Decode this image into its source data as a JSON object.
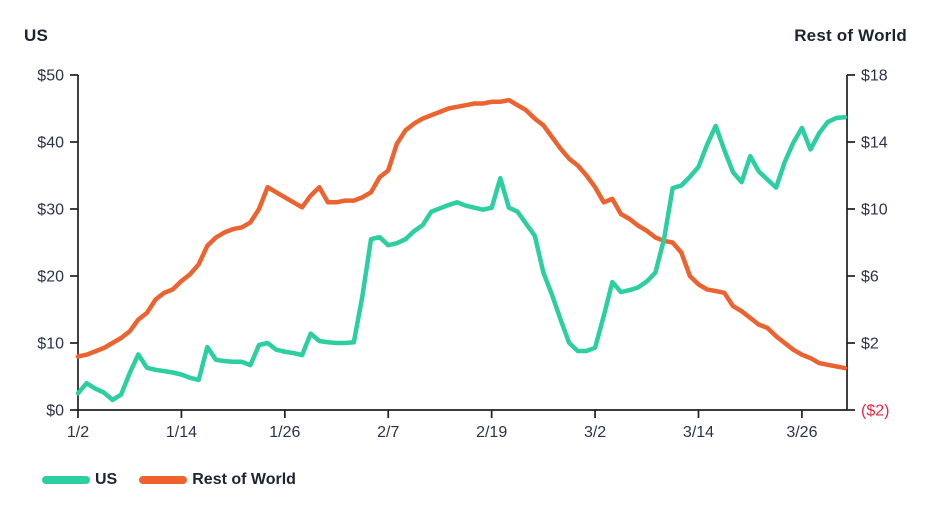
{
  "chart_data": {
    "type": "line",
    "left_axis": {
      "title": "US",
      "min": 0,
      "max": 50,
      "tick_values": [
        0,
        10,
        20,
        30,
        40,
        50
      ],
      "tick_labels": [
        "$0",
        "$10",
        "$20",
        "$30",
        "$40",
        "$50"
      ]
    },
    "right_axis": {
      "title": "Rest of World",
      "min": -2,
      "max": 18,
      "tick_values": [
        -2,
        2,
        6,
        10,
        14,
        18
      ],
      "tick_labels": [
        "($2)",
        "$2",
        "$6",
        "$10",
        "$14",
        "$18"
      ],
      "negative_label_color": "#E9273E"
    },
    "x_tick_labels": [
      "1/2",
      "1/14",
      "1/26",
      "2/7",
      "2/19",
      "3/2",
      "3/14",
      "3/26"
    ],
    "x_labels": [
      "1/2",
      "1/3",
      "1/4",
      "1/5",
      "1/6",
      "1/7",
      "1/8",
      "1/9",
      "1/10",
      "1/11",
      "1/12",
      "1/13",
      "1/14",
      "1/15",
      "1/16",
      "1/17",
      "1/18",
      "1/19",
      "1/20",
      "1/21",
      "1/22",
      "1/23",
      "1/24",
      "1/25",
      "1/26",
      "1/27",
      "1/28",
      "1/29",
      "1/30",
      "1/31",
      "2/1",
      "2/2",
      "2/3",
      "2/4",
      "2/5",
      "2/6",
      "2/7",
      "2/8",
      "2/9",
      "2/10",
      "2/11",
      "2/12",
      "2/13",
      "2/14",
      "2/15",
      "2/16",
      "2/17",
      "2/18",
      "2/19",
      "2/20",
      "2/21",
      "2/22",
      "2/23",
      "2/24",
      "2/25",
      "2/26",
      "2/27",
      "2/28",
      "2/29",
      "3/1",
      "3/2",
      "3/3",
      "3/4",
      "3/5",
      "3/6",
      "3/7",
      "3/8",
      "3/9",
      "3/10",
      "3/11",
      "3/12",
      "3/13",
      "3/14",
      "3/15",
      "3/16",
      "3/17",
      "3/18",
      "3/19",
      "3/20",
      "3/21",
      "3/22",
      "3/23",
      "3/24",
      "3/25",
      "3/26",
      "3/27",
      "3/28",
      "3/29",
      "3/30",
      "3/31"
    ],
    "series": [
      {
        "name": "Rest of World",
        "axis": "right",
        "color": "#EC6330",
        "values": [
          1.2,
          1.3,
          1.5,
          1.7,
          2.0,
          2.3,
          2.7,
          3.4,
          3.8,
          4.6,
          5.0,
          5.2,
          5.7,
          6.1,
          6.7,
          7.8,
          8.3,
          8.6,
          8.8,
          8.9,
          9.2,
          10.0,
          11.3,
          11.0,
          10.7,
          10.4,
          10.1,
          10.8,
          11.3,
          10.4,
          10.4,
          10.5,
          10.5,
          10.7,
          11.0,
          11.9,
          12.3,
          13.9,
          14.7,
          15.1,
          15.4,
          15.6,
          15.8,
          16.0,
          16.1,
          16.2,
          16.3,
          16.3,
          16.4,
          16.4,
          16.5,
          16.2,
          15.9,
          15.4,
          15.0,
          14.3,
          13.6,
          13.0,
          12.6,
          12.0,
          11.3,
          10.4,
          10.6,
          9.7,
          9.4,
          9.0,
          8.7,
          8.3,
          8.1,
          8.0,
          7.4,
          6.0,
          5.5,
          5.2,
          5.1,
          5.0,
          4.2,
          3.9,
          3.5,
          3.1,
          2.9,
          2.4,
          2.0,
          1.6,
          1.3,
          1.1,
          0.8,
          0.7,
          0.6,
          0.5
        ]
      },
      {
        "name": "US",
        "axis": "left",
        "color": "#2CCFA1",
        "values": [
          2.5,
          4.0,
          3.2,
          2.6,
          1.5,
          2.3,
          5.5,
          8.3,
          6.3,
          6.0,
          5.8,
          5.6,
          5.3,
          4.8,
          4.5,
          9.4,
          7.5,
          7.3,
          7.2,
          7.2,
          6.7,
          9.7,
          10.0,
          9.0,
          8.7,
          8.5,
          8.2,
          11.4,
          10.3,
          10.1,
          10.0,
          10.0,
          10.1,
          17.0,
          25.5,
          25.8,
          24.6,
          24.9,
          25.5,
          26.7,
          27.6,
          29.6,
          30.1,
          30.6,
          31.0,
          30.5,
          30.2,
          29.9,
          30.2,
          34.6,
          30.2,
          29.6,
          27.8,
          26.0,
          20.5,
          17.2,
          13.5,
          10.0,
          8.8,
          8.8,
          9.3,
          14.0,
          19.1,
          17.6,
          17.9,
          18.3,
          19.2,
          20.5,
          25.5,
          33.1,
          33.5,
          34.8,
          36.3,
          39.6,
          42.4,
          38.8,
          35.5,
          34.0,
          37.9,
          35.6,
          34.4,
          33.2,
          37.0,
          39.9,
          42.1,
          38.9,
          41.3,
          43.0,
          43.6,
          43.7
        ]
      }
    ],
    "legend": [
      {
        "label": "US",
        "color": "#2CCFA1"
      },
      {
        "label": "Rest of World",
        "color": "#EC6330"
      }
    ],
    "style": {
      "axis_line_color": "#1F1F1F",
      "tick_text_color": "#2A3347"
    }
  }
}
